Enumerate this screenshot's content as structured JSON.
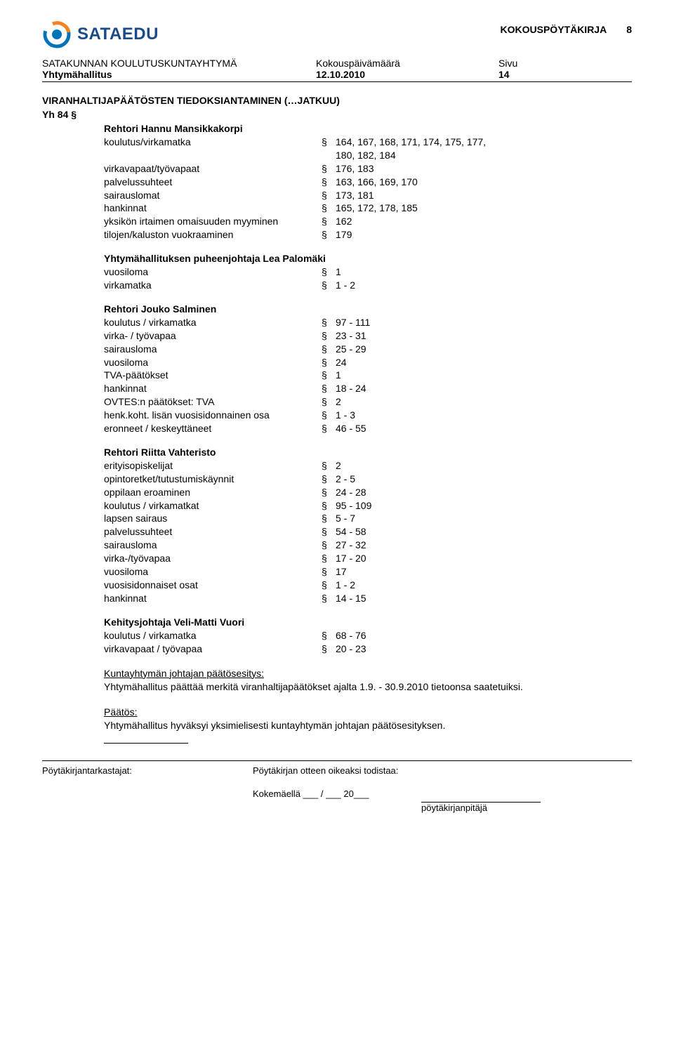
{
  "header": {
    "doc_type": "KOKOUSPÖYTÄKIRJA",
    "doc_num": "8",
    "logo_text": "SATAEDU",
    "logo_inner": "#ffffff",
    "logo_dash": "#f58220",
    "logo_ring": "#0072bc",
    "org_line": "SATAKUNNAN KOULUTUSKUNTAYHTYMÄ",
    "board_line": "Yhtymähallitus",
    "meeting_label": "Kokouspäivämäärä",
    "date": "12.10.2010",
    "page_label": "Sivu",
    "page_num": "14"
  },
  "title": "VIRANHALTIJAPÄÄTÖSTEN TIEDOKSIANTAMINEN (…JATKUU)",
  "yh": "Yh 84 §",
  "sections": [
    {
      "heading": "Rehtori Hannu Mansikkakorpi",
      "rows": [
        {
          "label": "koulutus/virkamatka",
          "val": "164, 167, 168, 171, 174, 175, 177, 180, 182, 184",
          "wrap": true
        },
        {
          "label": "virkavapaat/työvapaat",
          "val": "176, 183"
        },
        {
          "label": "palvelussuhteet",
          "val": "163, 166, 169, 170"
        },
        {
          "label": "sairauslomat",
          "val": "173, 181"
        },
        {
          "label": "hankinnat",
          "val": "165, 172, 178, 185"
        },
        {
          "label": "yksikön irtaimen omaisuuden myyminen",
          "val": "162"
        },
        {
          "label": "tilojen/kaluston vuokraaminen",
          "val": "179"
        }
      ]
    },
    {
      "heading": "Yhtymähallituksen puheenjohtaja Lea Palomäki",
      "rows": [
        {
          "label": "vuosiloma",
          "val": "1"
        },
        {
          "label": "virkamatka",
          "val": "1 - 2"
        }
      ]
    },
    {
      "heading": "Rehtori Jouko Salminen",
      "rows": [
        {
          "label": "koulutus / virkamatka",
          "val": "97 - 111"
        },
        {
          "label": "virka- / työvapaa",
          "val": "23 - 31"
        },
        {
          "label": "sairausloma",
          "val": "25 - 29"
        },
        {
          "label": "vuosiloma",
          "val": "24"
        },
        {
          "label": "TVA-päätökset",
          "val": "1"
        },
        {
          "label": "hankinnat",
          "val": "18 - 24"
        },
        {
          "label": "OVTES:n päätökset: TVA",
          "val": "2"
        },
        {
          "label": "henk.koht. lisän vuosisidonnainen osa",
          "val": "1 - 3"
        },
        {
          "label": "eronneet / keskeyttäneet",
          "val": "46 - 55"
        }
      ]
    },
    {
      "heading": "Rehtori Riitta Vahteristo",
      "rows": [
        {
          "label": "erityisopiskelijat",
          "val": "2"
        },
        {
          "label": "opintoretket/tutustumiskäynnit",
          "val": "2 - 5"
        },
        {
          "label": "oppilaan eroaminen",
          "val": "24 - 28"
        },
        {
          "label": "koulutus / virkamatkat",
          "val": "95 - 109"
        },
        {
          "label": "lapsen sairaus",
          "val": "5 - 7"
        },
        {
          "label": "palvelussuhteet",
          "val": "54 - 58"
        },
        {
          "label": "sairausloma",
          "val": "27 - 32"
        },
        {
          "label": "virka-/työvapaa",
          "val": "17 - 20"
        },
        {
          "label": "vuosiloma",
          "val": "17"
        },
        {
          "label": "vuosisidonnaiset osat",
          "val": "1 - 2"
        },
        {
          "label": "hankinnat",
          "val": "14 - 15"
        }
      ]
    },
    {
      "heading": "Kehitysjohtaja Veli-Matti Vuori",
      "rows": [
        {
          "label": "koulutus / virkamatka",
          "val": "68 - 76"
        },
        {
          "label": "virkavapaat / työvapaa",
          "val": "20 - 23"
        }
      ]
    }
  ],
  "proposal": {
    "label": "Kuntayhtymän johtajan päätösesitys:",
    "text": "Yhtymähallitus päättää merkitä viranhaltijapäätökset ajalta 1.9. - 30.9.2010 tietoonsa saatetuiksi."
  },
  "decision": {
    "label": "Päätös:",
    "text": "Yhtymähallitus hyväksyi yksimielisesti kuntayhtymän johtajan päätösesityksen."
  },
  "footer": {
    "left": "Pöytäkirjantarkastajat:",
    "right": "Pöytäkirjan otteen oikeaksi todistaa:",
    "bottom": "Kokemäellä ___ / ___ 20___",
    "sig": "pöytäkirjanpitäjä"
  }
}
